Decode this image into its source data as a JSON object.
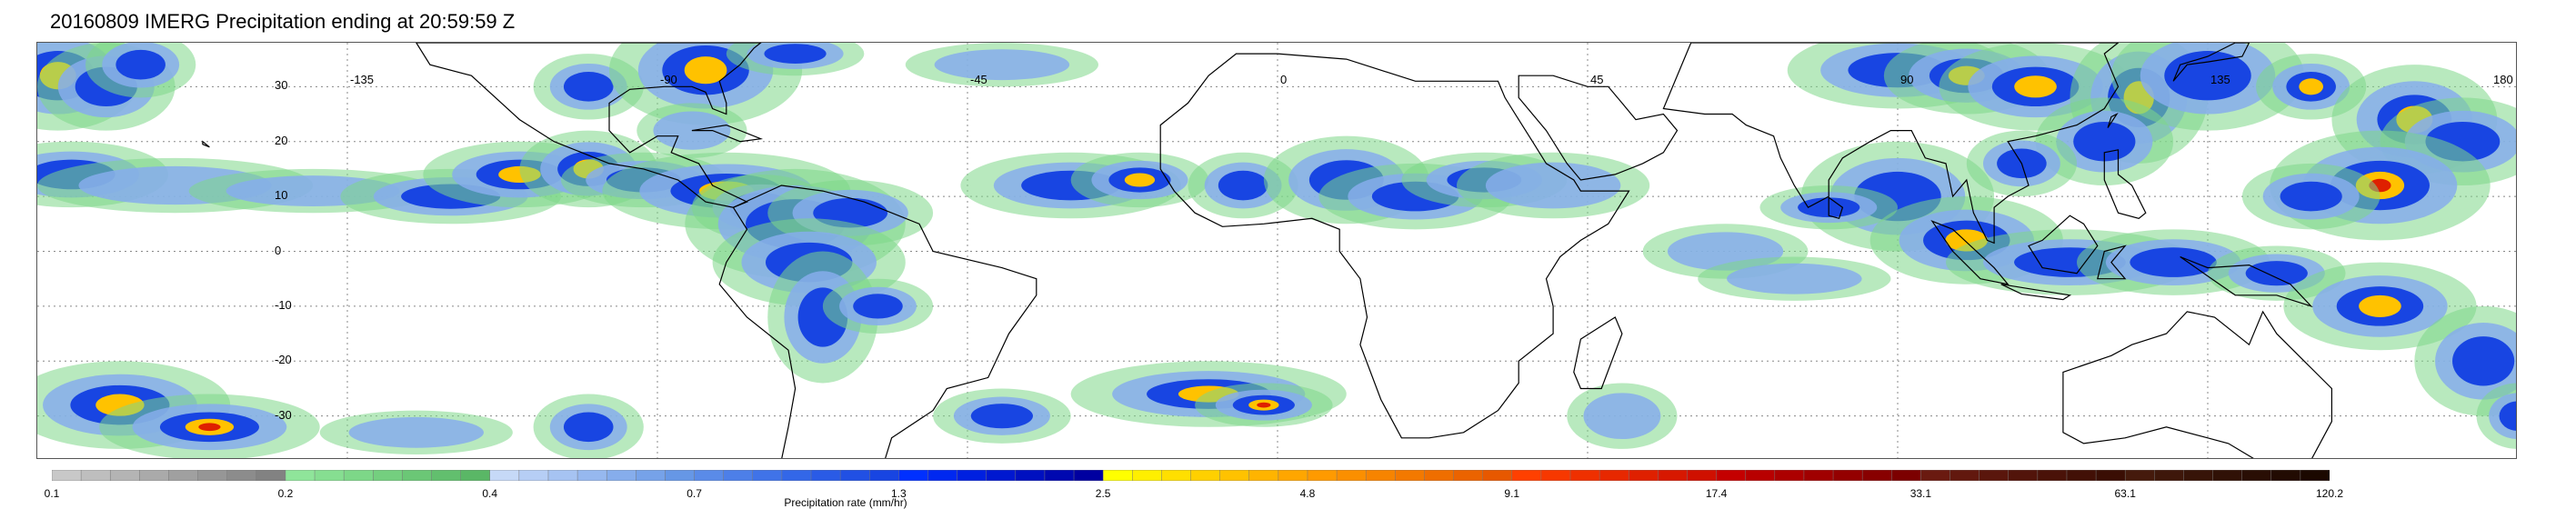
{
  "header": {
    "title": "20160809 IMERG Precipitation ending at 20:59:59 Z"
  },
  "map": {
    "lon_labels": [
      "-135",
      "-90",
      "-45",
      "0",
      "45",
      "90",
      "135",
      "180"
    ],
    "lat_labels": [
      "30",
      "20",
      "10",
      "0",
      "-10",
      "-20",
      "-30"
    ],
    "gridline_style": "dotted",
    "background": "#ffffff",
    "coastline_color": "#000000"
  },
  "colorbar": {
    "label": "Precipitation rate (mm/hr)",
    "tick_labels": [
      "0.1",
      "0.2",
      "0.4",
      "0.7",
      "1.3",
      "2.5",
      "4.8",
      "9.1",
      "17.4",
      "33.1",
      "63.1",
      "120.2"
    ],
    "group_colors": [
      [
        "#c8c8c8",
        "#bebebe",
        "#b4b4b4",
        "#aaaaaa",
        "#a0a0a0",
        "#969696",
        "#8c8c8c",
        "#828282"
      ],
      [
        "#8fe59a",
        "#86de91",
        "#7dd788",
        "#74cf7f",
        "#6bc776",
        "#62bf6e",
        "#5ab766"
      ],
      [
        "#c6d9f7",
        "#b6cef5",
        "#a6c3f2",
        "#96b8ef",
        "#86adec",
        "#76a2e9",
        "#6697e6"
      ],
      [
        "#5a8be8",
        "#4d7fe8",
        "#4073e8",
        "#3367e8",
        "#2a5be6",
        "#2150e4",
        "#1845e2"
      ],
      [
        "#0030ff",
        "#0028f0",
        "#0020e0",
        "#0018d0",
        "#0010c0",
        "#0008b0",
        "#0000a0"
      ],
      [
        "#ffff00",
        "#ffef00",
        "#ffdf00",
        "#ffd000",
        "#ffc200",
        "#ffb400",
        "#ffa600"
      ],
      [
        "#ff9a00",
        "#fb8f00",
        "#f78400",
        "#f37900",
        "#ef6e00",
        "#eb6300",
        "#e75800"
      ],
      [
        "#ff4000",
        "#f73800",
        "#ef3000",
        "#e72800",
        "#df2000",
        "#d71800",
        "#cf1000"
      ],
      [
        "#c40000",
        "#b80000",
        "#ac0000",
        "#a00000",
        "#940000",
        "#880000",
        "#7c0000"
      ],
      [
        "#6a1a10",
        "#62180e",
        "#5a160c",
        "#52140a",
        "#4a1208",
        "#421006",
        "#3a0e04"
      ],
      [
        "#451a0c",
        "#3e170a",
        "#371408",
        "#301106",
        "#290e04",
        "#220b02",
        "#1b0800"
      ]
    ]
  }
}
